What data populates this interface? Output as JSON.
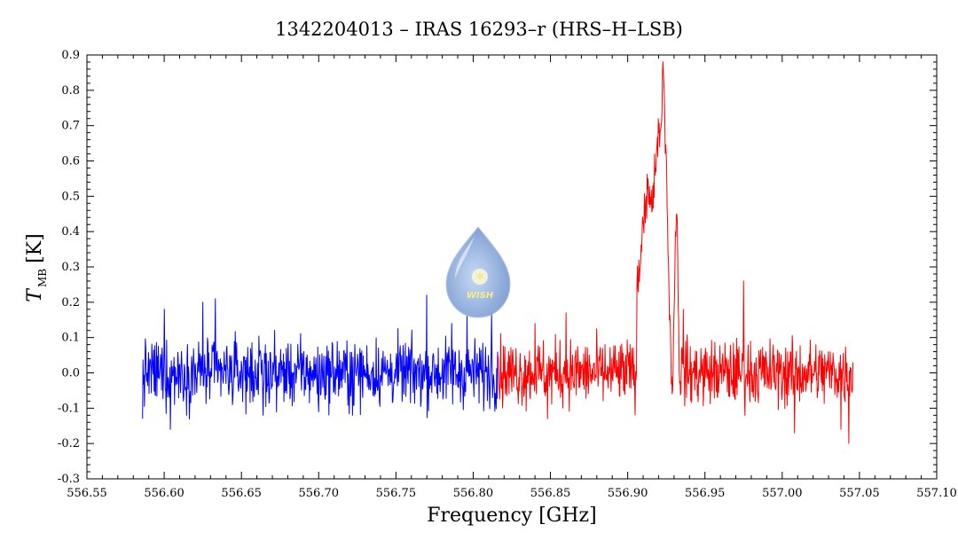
{
  "chart_data": {
    "type": "line",
    "title": "1342204013 – IRAS 16293–r (HRS–H–LSB)",
    "xlabel": "Frequency [GHz]",
    "ylabel": {
      "symbol": "T",
      "subscript": "MB",
      "unit": "[K]"
    },
    "xlim": [
      556.55,
      557.1
    ],
    "ylim": [
      -0.3,
      0.9
    ],
    "x_ticks": [
      "556.55",
      "556.60",
      "556.65",
      "556.70",
      "556.75",
      "556.80",
      "556.85",
      "556.90",
      "556.95",
      "557.00",
      "557.05",
      "557.10"
    ],
    "y_ticks": [
      "-0.3",
      "-0.2",
      "-0.1",
      "0.0",
      "0.1",
      "0.2",
      "0.3",
      "0.4",
      "0.5",
      "0.6",
      "0.7",
      "0.8",
      "0.9"
    ],
    "grid": false,
    "series": [
      {
        "color": "#0000ff",
        "x_range": [
          556.586,
          556.816
        ],
        "noise_rms": 0.065,
        "baseline": 0.0,
        "samples": [
          [
            556.586,
            -0.13
          ],
          [
            556.6,
            0.18
          ],
          [
            556.604,
            -0.16
          ],
          [
            556.625,
            0.2
          ],
          [
            556.633,
            0.21
          ],
          [
            556.664,
            -0.12
          ],
          [
            556.7,
            -0.11
          ],
          [
            556.722,
            -0.12
          ],
          [
            556.77,
            0.22
          ],
          [
            556.786,
            0.14
          ],
          [
            556.796,
            0.16
          ],
          [
            556.812,
            0.17
          ],
          [
            556.816,
            0.06
          ]
        ]
      },
      {
        "color": "#ff0000",
        "x_range": [
          556.816,
          557.046
        ],
        "noise_rms": 0.065,
        "baseline": 0.0,
        "samples": [
          [
            556.816,
            0.05
          ],
          [
            556.84,
            0.14
          ],
          [
            556.848,
            -0.13
          ],
          [
            556.86,
            0.17
          ],
          [
            556.9,
            0.05
          ],
          [
            556.906,
            0.25
          ],
          [
            556.908,
            0.3
          ],
          [
            556.91,
            0.43
          ],
          [
            556.913,
            0.52
          ],
          [
            556.916,
            0.46
          ],
          [
            556.918,
            0.58
          ],
          [
            556.92,
            0.68
          ],
          [
            556.922,
            0.71
          ],
          [
            556.923,
            0.85
          ],
          [
            556.925,
            0.62
          ],
          [
            556.927,
            0.15
          ],
          [
            556.929,
            -0.05
          ],
          [
            556.931,
            0.4
          ],
          [
            556.932,
            0.43
          ],
          [
            556.933,
            0.15
          ],
          [
            556.936,
            0.18
          ],
          [
            556.975,
            0.26
          ],
          [
            557.008,
            -0.17
          ],
          [
            557.038,
            -0.16
          ],
          [
            557.043,
            -0.2
          ],
          [
            557.046,
            0.03
          ]
        ]
      }
    ]
  },
  "logo": {
    "name": "wish-logo",
    "text": "WISH"
  }
}
